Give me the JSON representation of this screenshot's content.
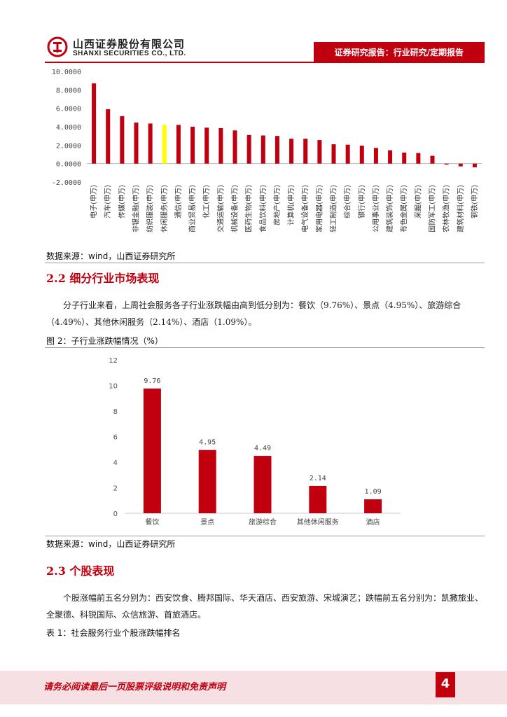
{
  "header": {
    "company_cn": "山西证券股份有限公司",
    "company_en": "SHANXI SECURITIES CO., LTD.",
    "report_type": "证券研究报告：行业研究/定期报告",
    "brand_color": "#c0000f"
  },
  "chart_data": [
    {
      "type": "bar",
      "title": "",
      "ylim": [
        -2,
        10
      ],
      "yticks": [
        "10.0000",
        "8.0000",
        "6.0000",
        "4.0000",
        "2.0000",
        "0.0000",
        "-2.0000"
      ],
      "categories": [
        "电子(申万)",
        "汽车(申万)",
        "传媒(申万)",
        "非银金融(申万)",
        "纺织服装(申万)",
        "休闲服务(申万)",
        "通信(申万)",
        "商业贸易(申万)",
        "化工(申万)",
        "交通运输(申万)",
        "机械设备(申万)",
        "医药生物(申万)",
        "食品饮料(申万)",
        "房地产(申万)",
        "计算机(申万)",
        "电气设备(申万)",
        "家用电器(申万)",
        "轻工制造(申万)",
        "综合(申万)",
        "银行(申万)",
        "公用事业(申万)",
        "建筑装饰(申万)",
        "有色金属(申万)",
        "采掘(申万)",
        "国防军工(申万)",
        "农林牧渔(申万)",
        "建筑材料(申万)",
        "钢铁(申万)"
      ],
      "values": [
        8.7,
        5.9,
        5.15,
        4.45,
        4.35,
        4.2,
        4.2,
        4.0,
        3.9,
        3.85,
        3.6,
        3.1,
        3.05,
        3.0,
        2.7,
        2.7,
        2.55,
        2.1,
        2.05,
        1.95,
        1.7,
        1.45,
        1.2,
        1.15,
        0.85,
        -0.1,
        -0.3,
        -0.4
      ],
      "highlight_category": "休闲服务(申万)",
      "bar_color": "#c0000f",
      "highlight_color": "#ffff00",
      "source": "数据来源：wind，山西证券研究所"
    },
    {
      "type": "bar",
      "title": "图 2：子行业涨跌幅情况（%）",
      "ylim": [
        0,
        12
      ],
      "yticks": [
        "12",
        "10",
        "8",
        "6",
        "4",
        "2",
        "0"
      ],
      "categories": [
        "餐饮",
        "景点",
        "旅游综合",
        "其他休闲服务",
        "酒店"
      ],
      "values": [
        9.76,
        4.95,
        4.49,
        2.14,
        1.09
      ],
      "data_labels": [
        "9.76",
        "4.95",
        "4.49",
        "2.14",
        "1.09"
      ],
      "bar_color": "#c0000f",
      "source": "数据来源：wind，山西证券研究所"
    }
  ],
  "section_2_2": {
    "title": "2.2 细分行业市场表现",
    "para": "分子行业来看，上周社会服务各子行业涨跌幅由高到低分别为：餐饮（9.76%）、景点（4.95%）、旅游综合（4.49%）、其他休闲服务（2.14%）、酒店（1.09%）。"
  },
  "section_2_3": {
    "title": "2.3 个股表现",
    "para": "个股涨幅前五名分别为：西安饮食、腾邦国际、华天酒店、西安旅游、宋城演艺；跌幅前五名分别为：凯撒旅业、全聚德、科锐国际、众信旅游、首旅酒店。",
    "table_caption": "表 1：社会服务行业个股涨跌幅排名"
  },
  "footer": {
    "disclaimer": "请务必阅读最后一页股票评级说明和免责声明",
    "page_number": "4"
  }
}
